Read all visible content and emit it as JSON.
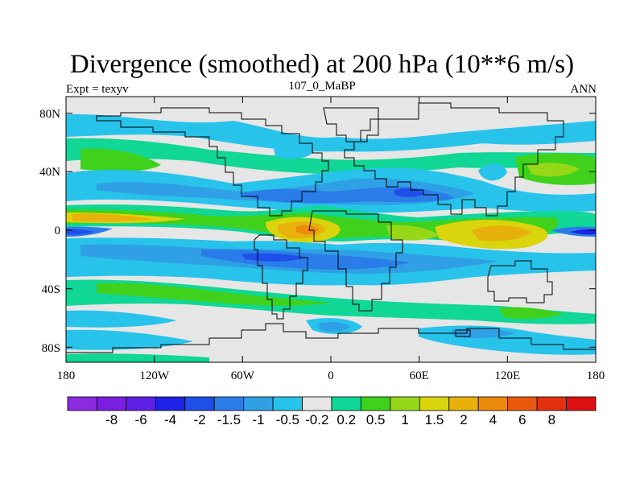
{
  "title": "Divergence (smoothed) at 200 hPa (10**6 m/s)",
  "left_label": "Expt = texyv",
  "center_label": "107_0_MaBP",
  "right_label": "ANN",
  "x_ticks": [
    "180",
    "120W",
    "60W",
    "0",
    "60E",
    "120E",
    "180"
  ],
  "y_ticks": [
    "80N",
    "40N",
    "0",
    "40S",
    "80S"
  ],
  "colorbar": {
    "colors": [
      "#8a2be2",
      "#7a1fe0",
      "#5f20e6",
      "#1e22e6",
      "#1f4ee8",
      "#2a7de8",
      "#2fa0e6",
      "#27c3ea",
      "#e6e6e6",
      "#10d696",
      "#3fd11c",
      "#96d817",
      "#d9d40b",
      "#e8b00a",
      "#ec8a0c",
      "#ea5a0c",
      "#e5300f",
      "#dc1010"
    ],
    "labels": [
      "-8",
      "-6",
      "-4",
      "-2",
      "-1.5",
      "-1",
      "-0.5",
      "-0.2",
      "0.2",
      "0.5",
      "1",
      "1.5",
      "2",
      "4",
      "6",
      "8"
    ]
  }
}
